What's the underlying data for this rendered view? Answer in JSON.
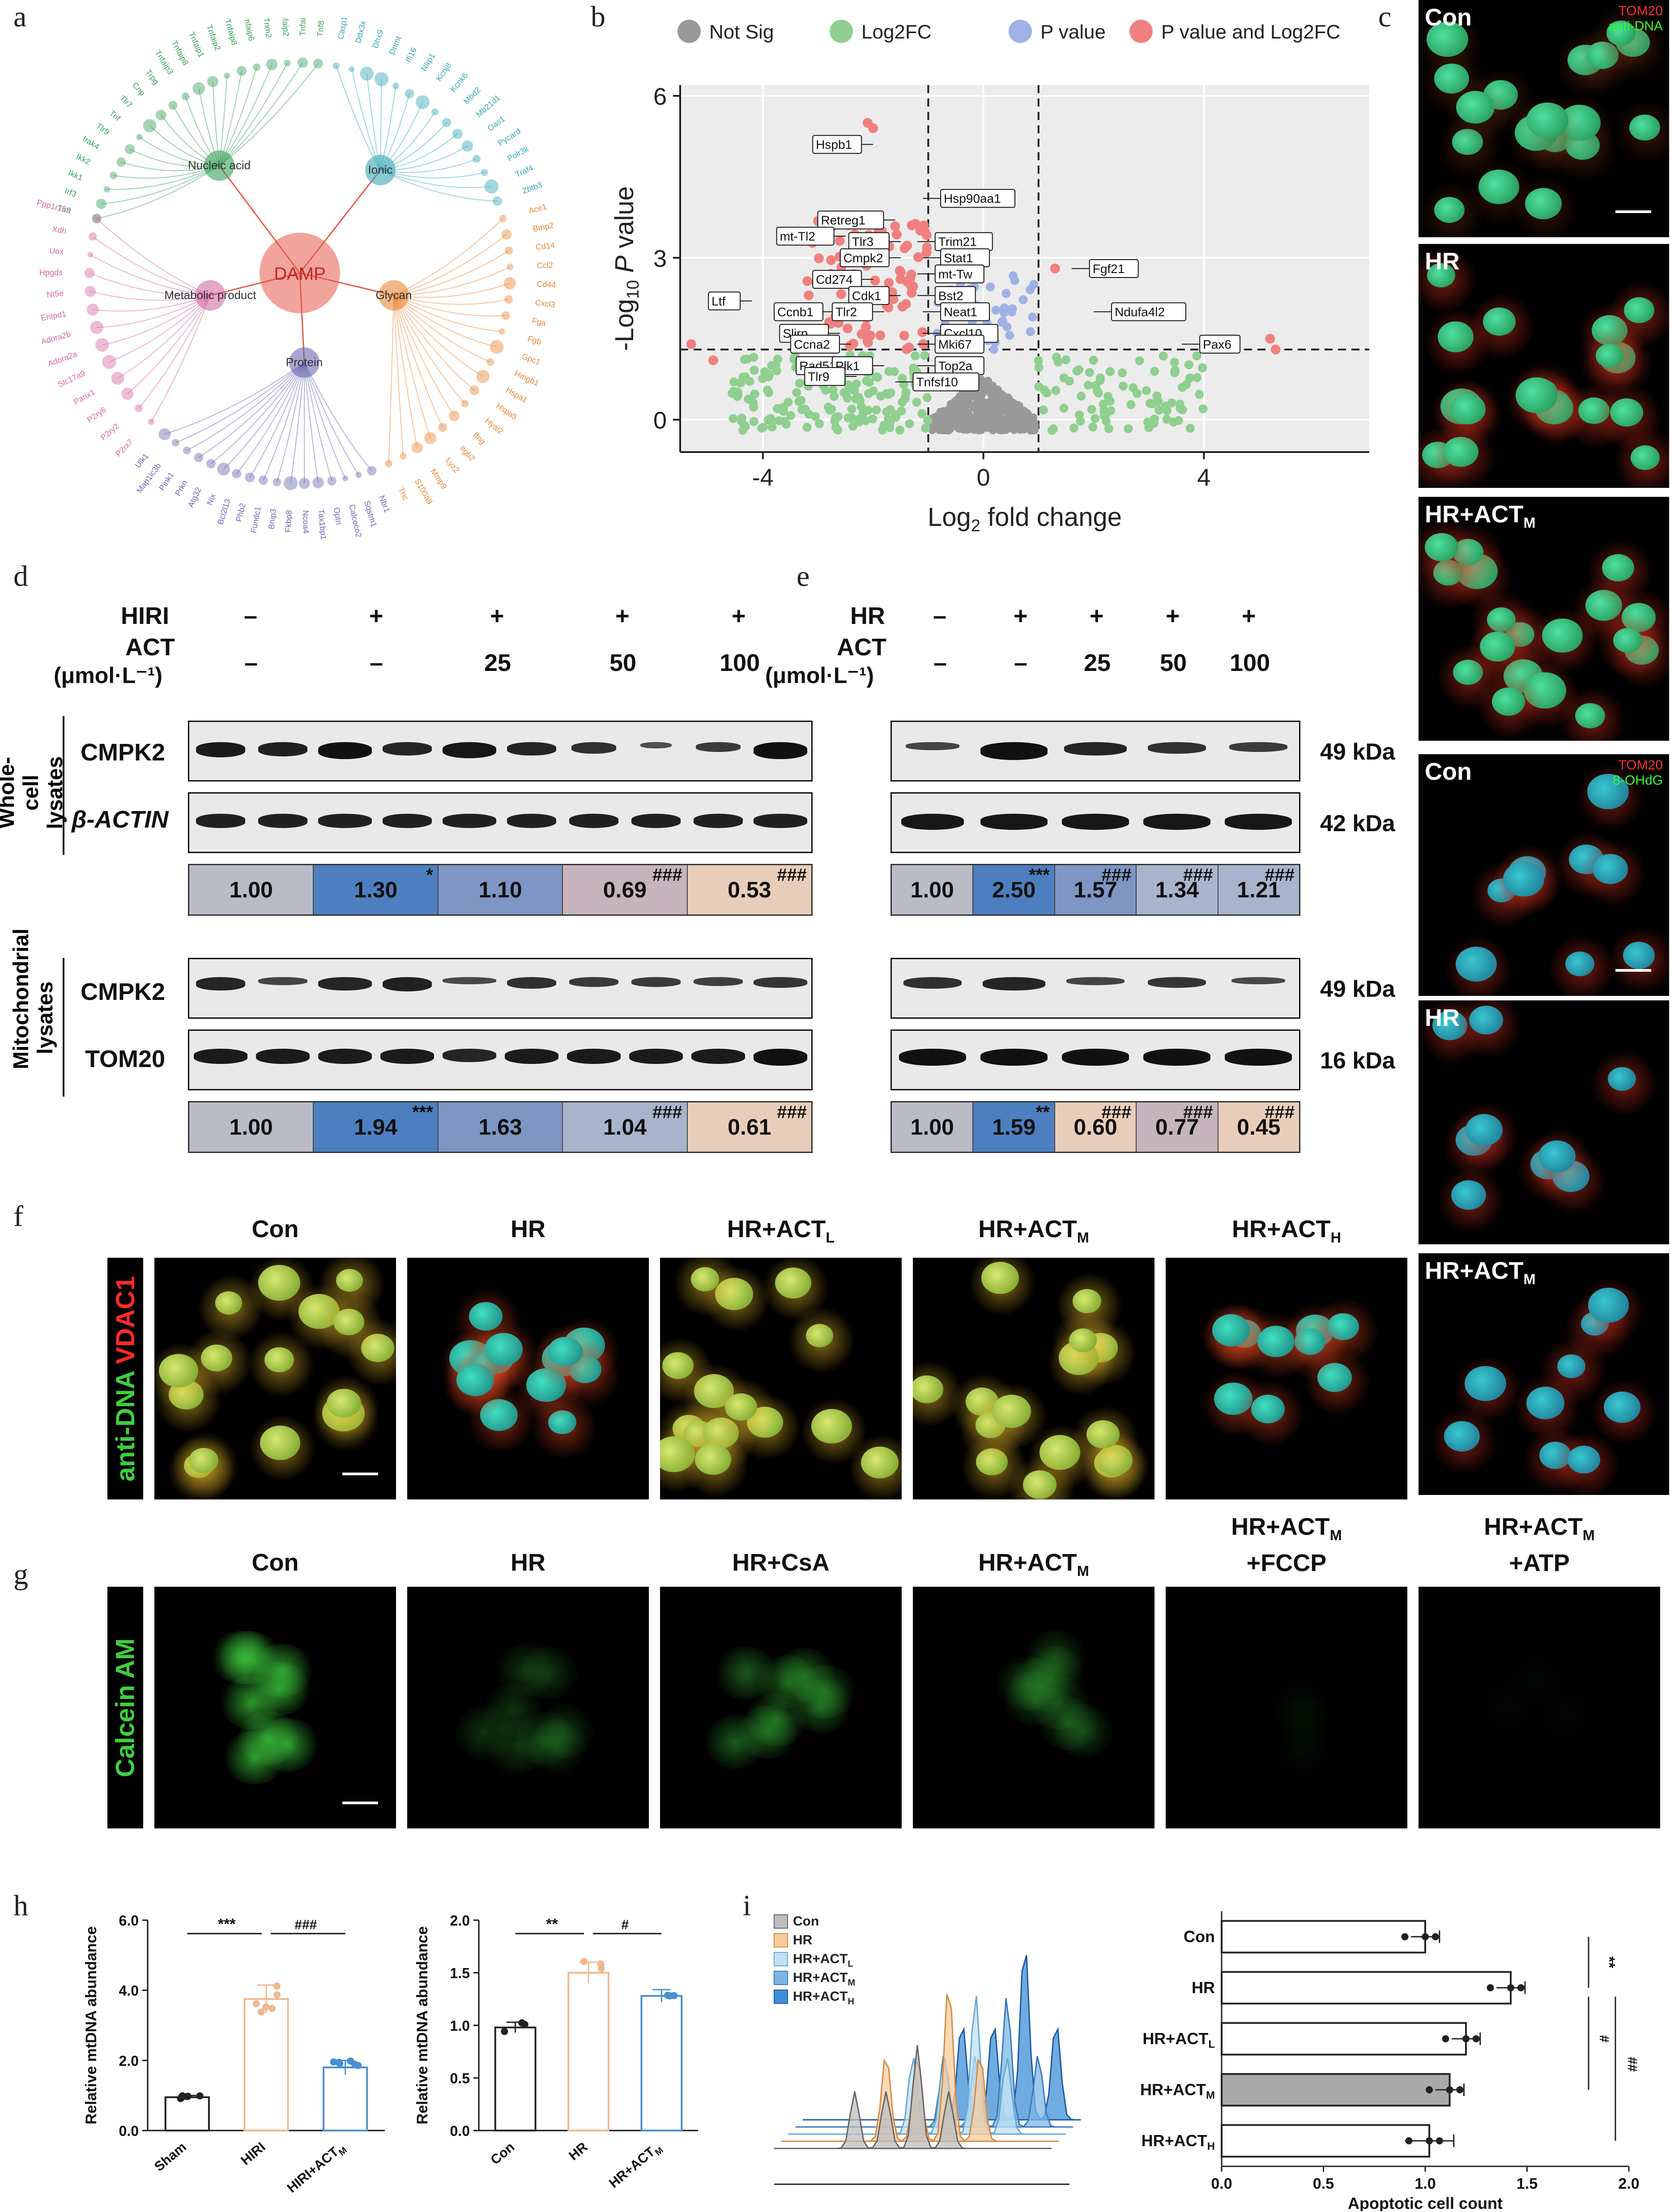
{
  "panels": {
    "a": "a",
    "b": "b",
    "c": "c",
    "d": "d",
    "e": "e",
    "f": "f",
    "g": "g",
    "h": "h",
    "i": "i"
  },
  "a": {
    "center": "DAMP",
    "categories": [
      "Nucleic acid",
      "Ionic",
      "Glycan",
      "Protein",
      "Metabolic product"
    ],
    "colors": {
      "nucleic": "#3aa05a",
      "ionic": "#3aa7b5",
      "glycan": "#e8873a",
      "protein": "#6a6ab0",
      "metabolic": "#d46aa3",
      "center": "#e65a4a"
    },
    "nucleic_genes": [
      "Tlr9",
      "Irf3",
      "Ikk1",
      "Ikk2",
      "Irak4",
      "Tlr9",
      "Trif",
      "Tlr7",
      "Cnp",
      "Trpg",
      "Tnfaip3",
      "Tnfaip8",
      "Tnfaip1",
      "Tnfaip2",
      "Tnfaip8",
      "Tnfaip6",
      "Trim2",
      "Tnfaip2",
      "Tnfaip5",
      "Tnf8"
    ],
    "ionic_genes": [
      "Casp1",
      "Ddx3x",
      "Dhx9",
      "Dnmt",
      "Ifi16",
      "Nlrp1",
      "Kcnj8",
      "Kcnk6",
      "Mbd2",
      "Mb21d1",
      "Oas1",
      "Pycard",
      "Polr3k",
      "Traf4",
      "Zbtb3"
    ],
    "glycan_genes": [
      "Ace1",
      "Bmp2",
      "Cd14",
      "Ccl2",
      "Cd44",
      "Cxcl3",
      "Fga",
      "Fgb",
      "Gpc1",
      "Hmgb1",
      "Hspa1",
      "Hspa5",
      "Hyal2",
      "Ifng",
      "Itgb2",
      "Lyz2",
      "Mmp9",
      "S100a8",
      "Tnc"
    ],
    "protein_genes": [
      "Nbr1",
      "Sqstm1",
      "Calcoco2",
      "Optn",
      "Tax1bp1",
      "Ncoa4",
      "Fkbp8",
      "Bnip3",
      "Fundc1",
      "Phb2",
      "Bcl2l13",
      "Nix",
      "Atg32",
      "Prkn",
      "Pink1",
      "Map1lc3b",
      "Ulk1"
    ],
    "metabolic_genes": [
      "P2rx7",
      "P2ry2",
      "P2ry6",
      "Panx1",
      "Slc17a9",
      "Adora2a",
      "Adora2b",
      "Entpd1",
      "Nt5e",
      "Hpgds",
      "Uox",
      "Xdh",
      "Ppp1r15a"
    ]
  },
  "b": {
    "legend": [
      "Not Sig",
      "Log2FC",
      "P value",
      "P value and Log2FC"
    ],
    "legend_colors": [
      "#999999",
      "#8fcf8f",
      "#9fb1e5",
      "#f08080"
    ],
    "ylabel": "-Log10 P value",
    "xlabel": "Log2 fold change",
    "xticks": [
      "-4",
      "0",
      "4"
    ],
    "yticks": [
      "0",
      "3",
      "6"
    ],
    "labels": [
      "Hspb1",
      "Hsp90aa1",
      "Retreg1",
      "mt-Tl2",
      "Tlr3",
      "Trim21",
      "Stat1",
      "Cmpk2",
      "mt-Tw",
      "Cd274",
      "Cdk1",
      "Bst2",
      "Ltf",
      "Ccnb1",
      "Tlr2",
      "Neat1",
      "Slirp",
      "Cxcl10",
      "Ccna2",
      "Mki67",
      "Rad51",
      "Plk1",
      "Top2a",
      "Tlr9",
      "Tnfsf10",
      "Fgf21",
      "Ndufa4l2",
      "Pax6"
    ]
  },
  "c": {
    "top_channel_red": "TOM20",
    "top_channel_green": "anti-DNA",
    "bottom_channel_red": "TOM20",
    "bottom_channel_green": "8-OHdG",
    "labels": [
      "Con",
      "HR",
      "HR+ACT",
      "Con",
      "HR",
      "HR+ACT"
    ],
    "sub_m": "M"
  },
  "d": {
    "treatment": "HIRI",
    "act": "ACT",
    "unit": "(μmol·L⁻¹)",
    "treat_signs": [
      "–",
      "+",
      "+",
      "+",
      "+"
    ],
    "act_doses": [
      "–",
      "–",
      "25",
      "50",
      "100"
    ],
    "group1": "Whole-cell lysates",
    "group2": "Mitochondrial lysates",
    "row1": "CMPK2",
    "row2": "β-ACTIN",
    "row3": "CMPK2",
    "row4": "TOM20",
    "quant1": [
      "1.00",
      "1.30",
      "1.10",
      "0.69",
      "0.53"
    ],
    "sig1": [
      "",
      "*",
      "",
      "###",
      "###"
    ],
    "quant2": [
      "1.00",
      "1.94",
      "1.63",
      "1.04",
      "0.61"
    ],
    "sig2": [
      "",
      "***",
      "",
      "###",
      "###"
    ]
  },
  "e": {
    "treatment": "HR",
    "act": "ACT",
    "unit": "(μmol·L⁻¹)",
    "treat_signs": [
      "–",
      "+",
      "+",
      "+",
      "+"
    ],
    "act_doses": [
      "–",
      "–",
      "25",
      "50",
      "100"
    ],
    "kda": [
      "49 kDa",
      "42 kDa",
      "49 kDa",
      "16 kDa"
    ],
    "quant1": [
      "1.00",
      "2.50",
      "1.57",
      "1.34",
      "1.21"
    ],
    "sig1": [
      "",
      "***",
      "###",
      "###",
      "###"
    ],
    "quant2": [
      "1.00",
      "1.59",
      "0.60",
      "0.77",
      "0.45"
    ],
    "sig2": [
      "",
      "**",
      "###",
      "###",
      "###"
    ]
  },
  "quant_colors": {
    "base": "#b9bcc6",
    "blue": "#4d7fc0",
    "lightblue": "#7d96c4",
    "paleblue": "#a8b4cc",
    "tan": "#e8ceb8",
    "mauve": "#c7b4bd"
  },
  "f": {
    "sidebar_green": "anti-DNA",
    "sidebar_red": "VDAC1",
    "cols": [
      "Con",
      "HR",
      "HR+ACT",
      "HR+ACT",
      "HR+ACT"
    ],
    "subs": [
      "",
      "",
      "L",
      "M",
      "H"
    ]
  },
  "g": {
    "sidebar": "Calcein  AM",
    "cols": [
      "Con",
      "HR",
      "HR+CsA",
      "HR+ACT",
      "HR+ACT",
      "HR+ACT"
    ],
    "subs": [
      "",
      "",
      "",
      "M",
      "M",
      "M"
    ],
    "extra": [
      "",
      "",
      "",
      "",
      "+FCCP",
      "+ATP"
    ]
  },
  "h": {
    "ylabel": "Relative mtDNA abundance",
    "chart1": {
      "categories": [
        "Sham",
        "HIRI",
        "HIRI+ACT"
      ],
      "cat3_sub": "M",
      "ylim": [
        0,
        6
      ],
      "yticks": [
        "0.0",
        "2.0",
        "4.0",
        "6.0"
      ],
      "values": [
        0.95,
        3.75,
        1.8
      ],
      "sig": [
        "***",
        "###"
      ]
    },
    "chart2": {
      "categories": [
        "Con",
        "HR",
        "HR+ACT"
      ],
      "cat3_sub": "M",
      "ylim": [
        0,
        2
      ],
      "yticks": [
        "0.0",
        "0.5",
        "1.0",
        "1.5",
        "2.0"
      ],
      "values": [
        0.98,
        1.5,
        1.28
      ],
      "sig": [
        "**",
        "#"
      ]
    }
  },
  "i": {
    "legend": [
      "Con",
      "HR",
      "HR+ACT",
      "HR+ACT",
      "HR+ACT"
    ],
    "legend_subs": [
      "",
      "",
      "L",
      "M",
      "H"
    ],
    "xlabel": "Apoptotic cell count",
    "xticks": [
      "0.0",
      "0.5",
      "1.0",
      "1.5",
      "2.0"
    ],
    "sig": [
      "**",
      "#",
      "##"
    ]
  },
  "chart_data": [
    {
      "type": "scatter",
      "title": "",
      "xlabel": "Log2 fold change",
      "ylabel": "-Log10 P value",
      "xlim": [
        -5.5,
        7
      ],
      "ylim": [
        -0.6,
        6.2
      ],
      "thresholds": {
        "x": [
          -1,
          1
        ],
        "y": 1.3
      },
      "labeled_points": [
        {
          "label": "Hspb1",
          "x": -2.0,
          "y": 5.1
        },
        {
          "label": "Hsp90aa1",
          "x": -1.1,
          "y": 4.1
        },
        {
          "label": "Retreg1",
          "x": -1.6,
          "y": 3.7
        },
        {
          "label": "mt-Tl2",
          "x": -2.5,
          "y": 3.4
        },
        {
          "label": "Tlr3",
          "x": -1.5,
          "y": 3.3
        },
        {
          "label": "Trim21",
          "x": -1.2,
          "y": 3.3
        },
        {
          "label": "Stat1",
          "x": -1.1,
          "y": 3.0
        },
        {
          "label": "Cmpk2",
          "x": -1.5,
          "y": 3.0
        },
        {
          "label": "mt-Tw",
          "x": -1.2,
          "y": 2.7
        },
        {
          "label": "Cd274",
          "x": -2.0,
          "y": 2.6
        },
        {
          "label": "Cdk1",
          "x": -1.5,
          "y": 2.3
        },
        {
          "label": "Bst2",
          "x": -1.2,
          "y": 2.3
        },
        {
          "label": "Ltf",
          "x": -4.2,
          "y": 2.2
        },
        {
          "label": "Ccnb1",
          "x": -2.7,
          "y": 2.0
        },
        {
          "label": "Tlr2",
          "x": -1.8,
          "y": 2.0
        },
        {
          "label": "Neat1",
          "x": -1.1,
          "y": 2.0
        },
        {
          "label": "Slirp",
          "x": -2.6,
          "y": 1.6
        },
        {
          "label": "Cxcl10",
          "x": -1.1,
          "y": 1.6
        },
        {
          "label": "Ccna2",
          "x": -2.4,
          "y": 1.4
        },
        {
          "label": "Mki67",
          "x": -1.2,
          "y": 1.4
        },
        {
          "label": "Rad51",
          "x": -2.3,
          "y": 1.0
        },
        {
          "label": "Plk1",
          "x": -1.8,
          "y": 1.0
        },
        {
          "label": "Top2a",
          "x": -1.2,
          "y": 1.0
        },
        {
          "label": "Tlr9",
          "x": -2.3,
          "y": 0.8
        },
        {
          "label": "Tnfsf10",
          "x": -1.6,
          "y": 0.7
        },
        {
          "label": "Fgf21",
          "x": 1.6,
          "y": 2.8
        },
        {
          "label": "Ndufa4l2",
          "x": 2.0,
          "y": 2.0
        },
        {
          "label": "Pax6",
          "x": 3.6,
          "y": 1.4
        }
      ]
    },
    {
      "type": "bar",
      "title": "",
      "categories": [
        "Sham",
        "HIRI",
        "HIRI+ACTM"
      ],
      "values": [
        0.95,
        3.75,
        1.8
      ],
      "errors": [
        0.05,
        0.4,
        0.2
      ],
      "ylabel": "Relative mtDNA abundance",
      "ylim": [
        0,
        6
      ]
    },
    {
      "type": "bar",
      "title": "",
      "categories": [
        "Con",
        "HR",
        "HR+ACTM"
      ],
      "values": [
        0.98,
        1.5,
        1.28
      ],
      "errors": [
        0.05,
        0.1,
        0.06
      ],
      "ylabel": "Relative mtDNA abundance",
      "ylim": [
        0,
        2
      ]
    },
    {
      "type": "bar",
      "title": "",
      "orientation": "horizontal",
      "categories": [
        "Con",
        "HR",
        "HR+ACTL",
        "HR+ACTM",
        "HR+ACTH"
      ],
      "values": [
        1.0,
        1.42,
        1.2,
        1.12,
        1.02
      ],
      "errors": [
        0.07,
        0.07,
        0.07,
        0.07,
        0.12
      ],
      "xlabel": "Apoptotic cell count",
      "xlim": [
        0,
        2
      ]
    }
  ]
}
